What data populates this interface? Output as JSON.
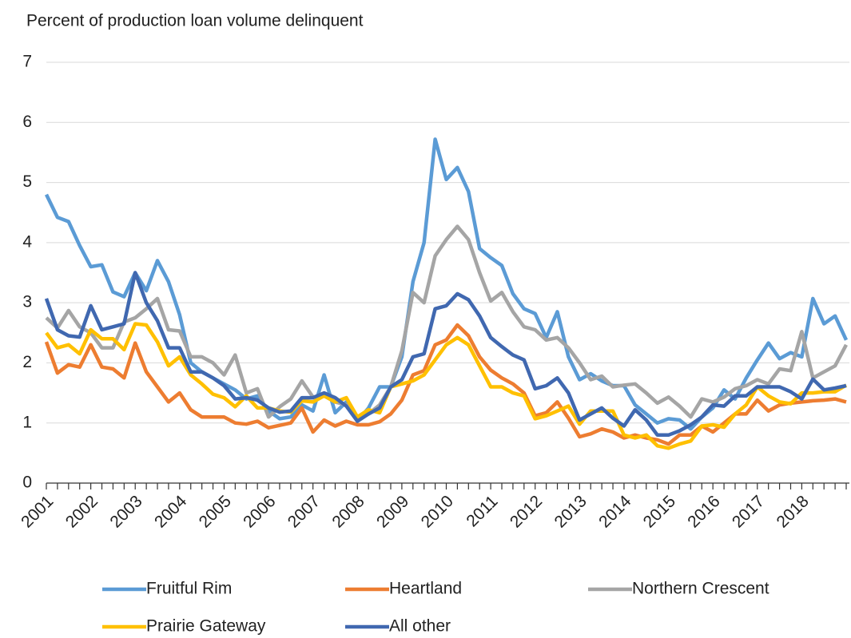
{
  "chart_data": {
    "type": "line",
    "title": "Percent of production loan volume delinquent",
    "categories": [
      "2001",
      null,
      null,
      null,
      "2002",
      null,
      null,
      null,
      "2003",
      null,
      null,
      null,
      "2004",
      null,
      null,
      null,
      "2005",
      null,
      null,
      null,
      "2006",
      null,
      null,
      null,
      "2007",
      null,
      null,
      null,
      "2008",
      null,
      null,
      null,
      "2009",
      null,
      null,
      null,
      "2010",
      null,
      null,
      null,
      "2011",
      null,
      null,
      null,
      "2012",
      null,
      null,
      null,
      "2013",
      null,
      null,
      null,
      "2014",
      null,
      null,
      null,
      "2015",
      null,
      null,
      null,
      "2016",
      null,
      null,
      null,
      "2017",
      null,
      null,
      null,
      "2018",
      null,
      null,
      null,
      null
    ],
    "ylim": [
      0,
      7
    ],
    "yticks": [
      0,
      1,
      2,
      3,
      4,
      5,
      6,
      7
    ],
    "grid": true,
    "legend": "bottom",
    "series": [
      {
        "name": "Fruitful Rim",
        "color": "#5b9bd5",
        "values": [
          4.8,
          4.42,
          4.35,
          3.95,
          3.6,
          3.63,
          3.18,
          3.1,
          3.5,
          3.2,
          3.7,
          3.35,
          2.8,
          2.0,
          1.85,
          1.75,
          1.65,
          1.55,
          1.4,
          1.45,
          1.2,
          1.07,
          1.1,
          1.3,
          1.2,
          1.8,
          1.17,
          1.35,
          1.03,
          1.25,
          1.6,
          1.6,
          2.1,
          3.35,
          4.0,
          5.72,
          5.05,
          5.25,
          4.85,
          3.9,
          3.75,
          3.62,
          3.15,
          2.9,
          2.82,
          2.42,
          2.85,
          2.1,
          1.72,
          1.82,
          1.7,
          1.62,
          1.62,
          1.3,
          1.15,
          1.0,
          1.07,
          1.05,
          0.9,
          1.1,
          1.25,
          1.55,
          1.4,
          1.75,
          2.05,
          2.33,
          2.07,
          2.17,
          2.1,
          3.07,
          2.65,
          2.78,
          2.38
        ]
      },
      {
        "name": "Heartland",
        "color": "#ed7d31",
        "values": [
          2.35,
          1.83,
          1.97,
          1.93,
          2.3,
          1.93,
          1.9,
          1.75,
          2.33,
          1.85,
          1.6,
          1.35,
          1.5,
          1.22,
          1.1,
          1.1,
          1.1,
          1.0,
          0.98,
          1.03,
          0.92,
          0.96,
          1.0,
          1.25,
          0.85,
          1.05,
          0.95,
          1.03,
          0.97,
          0.97,
          1.02,
          1.15,
          1.38,
          1.8,
          1.87,
          2.3,
          2.38,
          2.63,
          2.45,
          2.1,
          1.88,
          1.75,
          1.65,
          1.5,
          1.12,
          1.17,
          1.35,
          1.08,
          0.77,
          0.82,
          0.9,
          0.85,
          0.75,
          0.8,
          0.75,
          0.72,
          0.65,
          0.8,
          0.8,
          0.95,
          0.85,
          1.0,
          1.15,
          1.15,
          1.38,
          1.2,
          1.3,
          1.33,
          1.35,
          1.37,
          1.38,
          1.4,
          1.35
        ]
      },
      {
        "name": "Northern Crescent",
        "color": "#a5a5a5",
        "values": [
          2.75,
          2.58,
          2.87,
          2.6,
          2.5,
          2.25,
          2.25,
          2.68,
          2.75,
          2.9,
          3.07,
          2.55,
          2.53,
          2.1,
          2.1,
          2.0,
          1.8,
          2.13,
          1.5,
          1.57,
          1.1,
          1.27,
          1.4,
          1.7,
          1.43,
          1.45,
          1.35,
          1.3,
          1.08,
          1.15,
          1.3,
          1.6,
          2.2,
          3.17,
          3.0,
          3.78,
          4.05,
          4.27,
          4.05,
          3.5,
          3.03,
          3.17,
          2.85,
          2.6,
          2.55,
          2.38,
          2.42,
          2.25,
          2.0,
          1.72,
          1.78,
          1.6,
          1.63,
          1.65,
          1.5,
          1.33,
          1.43,
          1.28,
          1.1,
          1.4,
          1.35,
          1.43,
          1.57,
          1.62,
          1.72,
          1.65,
          1.9,
          1.87,
          2.52,
          1.75,
          1.85,
          1.95,
          2.3
        ]
      },
      {
        "name": "Prairie Gateway",
        "color": "#ffc000",
        "values": [
          2.5,
          2.25,
          2.3,
          2.15,
          2.55,
          2.4,
          2.4,
          2.22,
          2.65,
          2.63,
          2.35,
          1.95,
          2.1,
          1.8,
          1.65,
          1.48,
          1.42,
          1.27,
          1.45,
          1.25,
          1.25,
          1.2,
          1.18,
          1.37,
          1.35,
          1.45,
          1.35,
          1.42,
          1.1,
          1.22,
          1.17,
          1.6,
          1.65,
          1.7,
          1.8,
          2.05,
          2.3,
          2.42,
          2.3,
          1.95,
          1.6,
          1.6,
          1.5,
          1.45,
          1.07,
          1.12,
          1.2,
          1.28,
          0.98,
          1.2,
          1.2,
          1.2,
          0.8,
          0.75,
          0.8,
          0.62,
          0.58,
          0.65,
          0.7,
          0.95,
          0.97,
          0.93,
          1.15,
          1.3,
          1.6,
          1.45,
          1.35,
          1.32,
          1.5,
          1.5,
          1.52,
          1.52,
          1.63
        ]
      },
      {
        "name": "All other",
        "color": "#4068b0",
        "values": [
          3.07,
          2.55,
          2.45,
          2.43,
          2.95,
          2.55,
          2.6,
          2.65,
          3.5,
          3.0,
          2.7,
          2.25,
          2.25,
          1.85,
          1.85,
          1.75,
          1.62,
          1.4,
          1.42,
          1.38,
          1.25,
          1.18,
          1.2,
          1.42,
          1.42,
          1.5,
          1.42,
          1.28,
          1.03,
          1.15,
          1.25,
          1.6,
          1.72,
          2.1,
          2.15,
          2.9,
          2.95,
          3.15,
          3.05,
          2.78,
          2.42,
          2.27,
          2.13,
          2.05,
          1.57,
          1.62,
          1.75,
          1.5,
          1.05,
          1.15,
          1.25,
          1.08,
          0.95,
          1.22,
          1.05,
          0.8,
          0.8,
          0.87,
          0.97,
          1.1,
          1.3,
          1.28,
          1.45,
          1.45,
          1.6,
          1.6,
          1.6,
          1.52,
          1.4,
          1.73,
          1.55,
          1.58,
          1.62
        ]
      }
    ]
  }
}
